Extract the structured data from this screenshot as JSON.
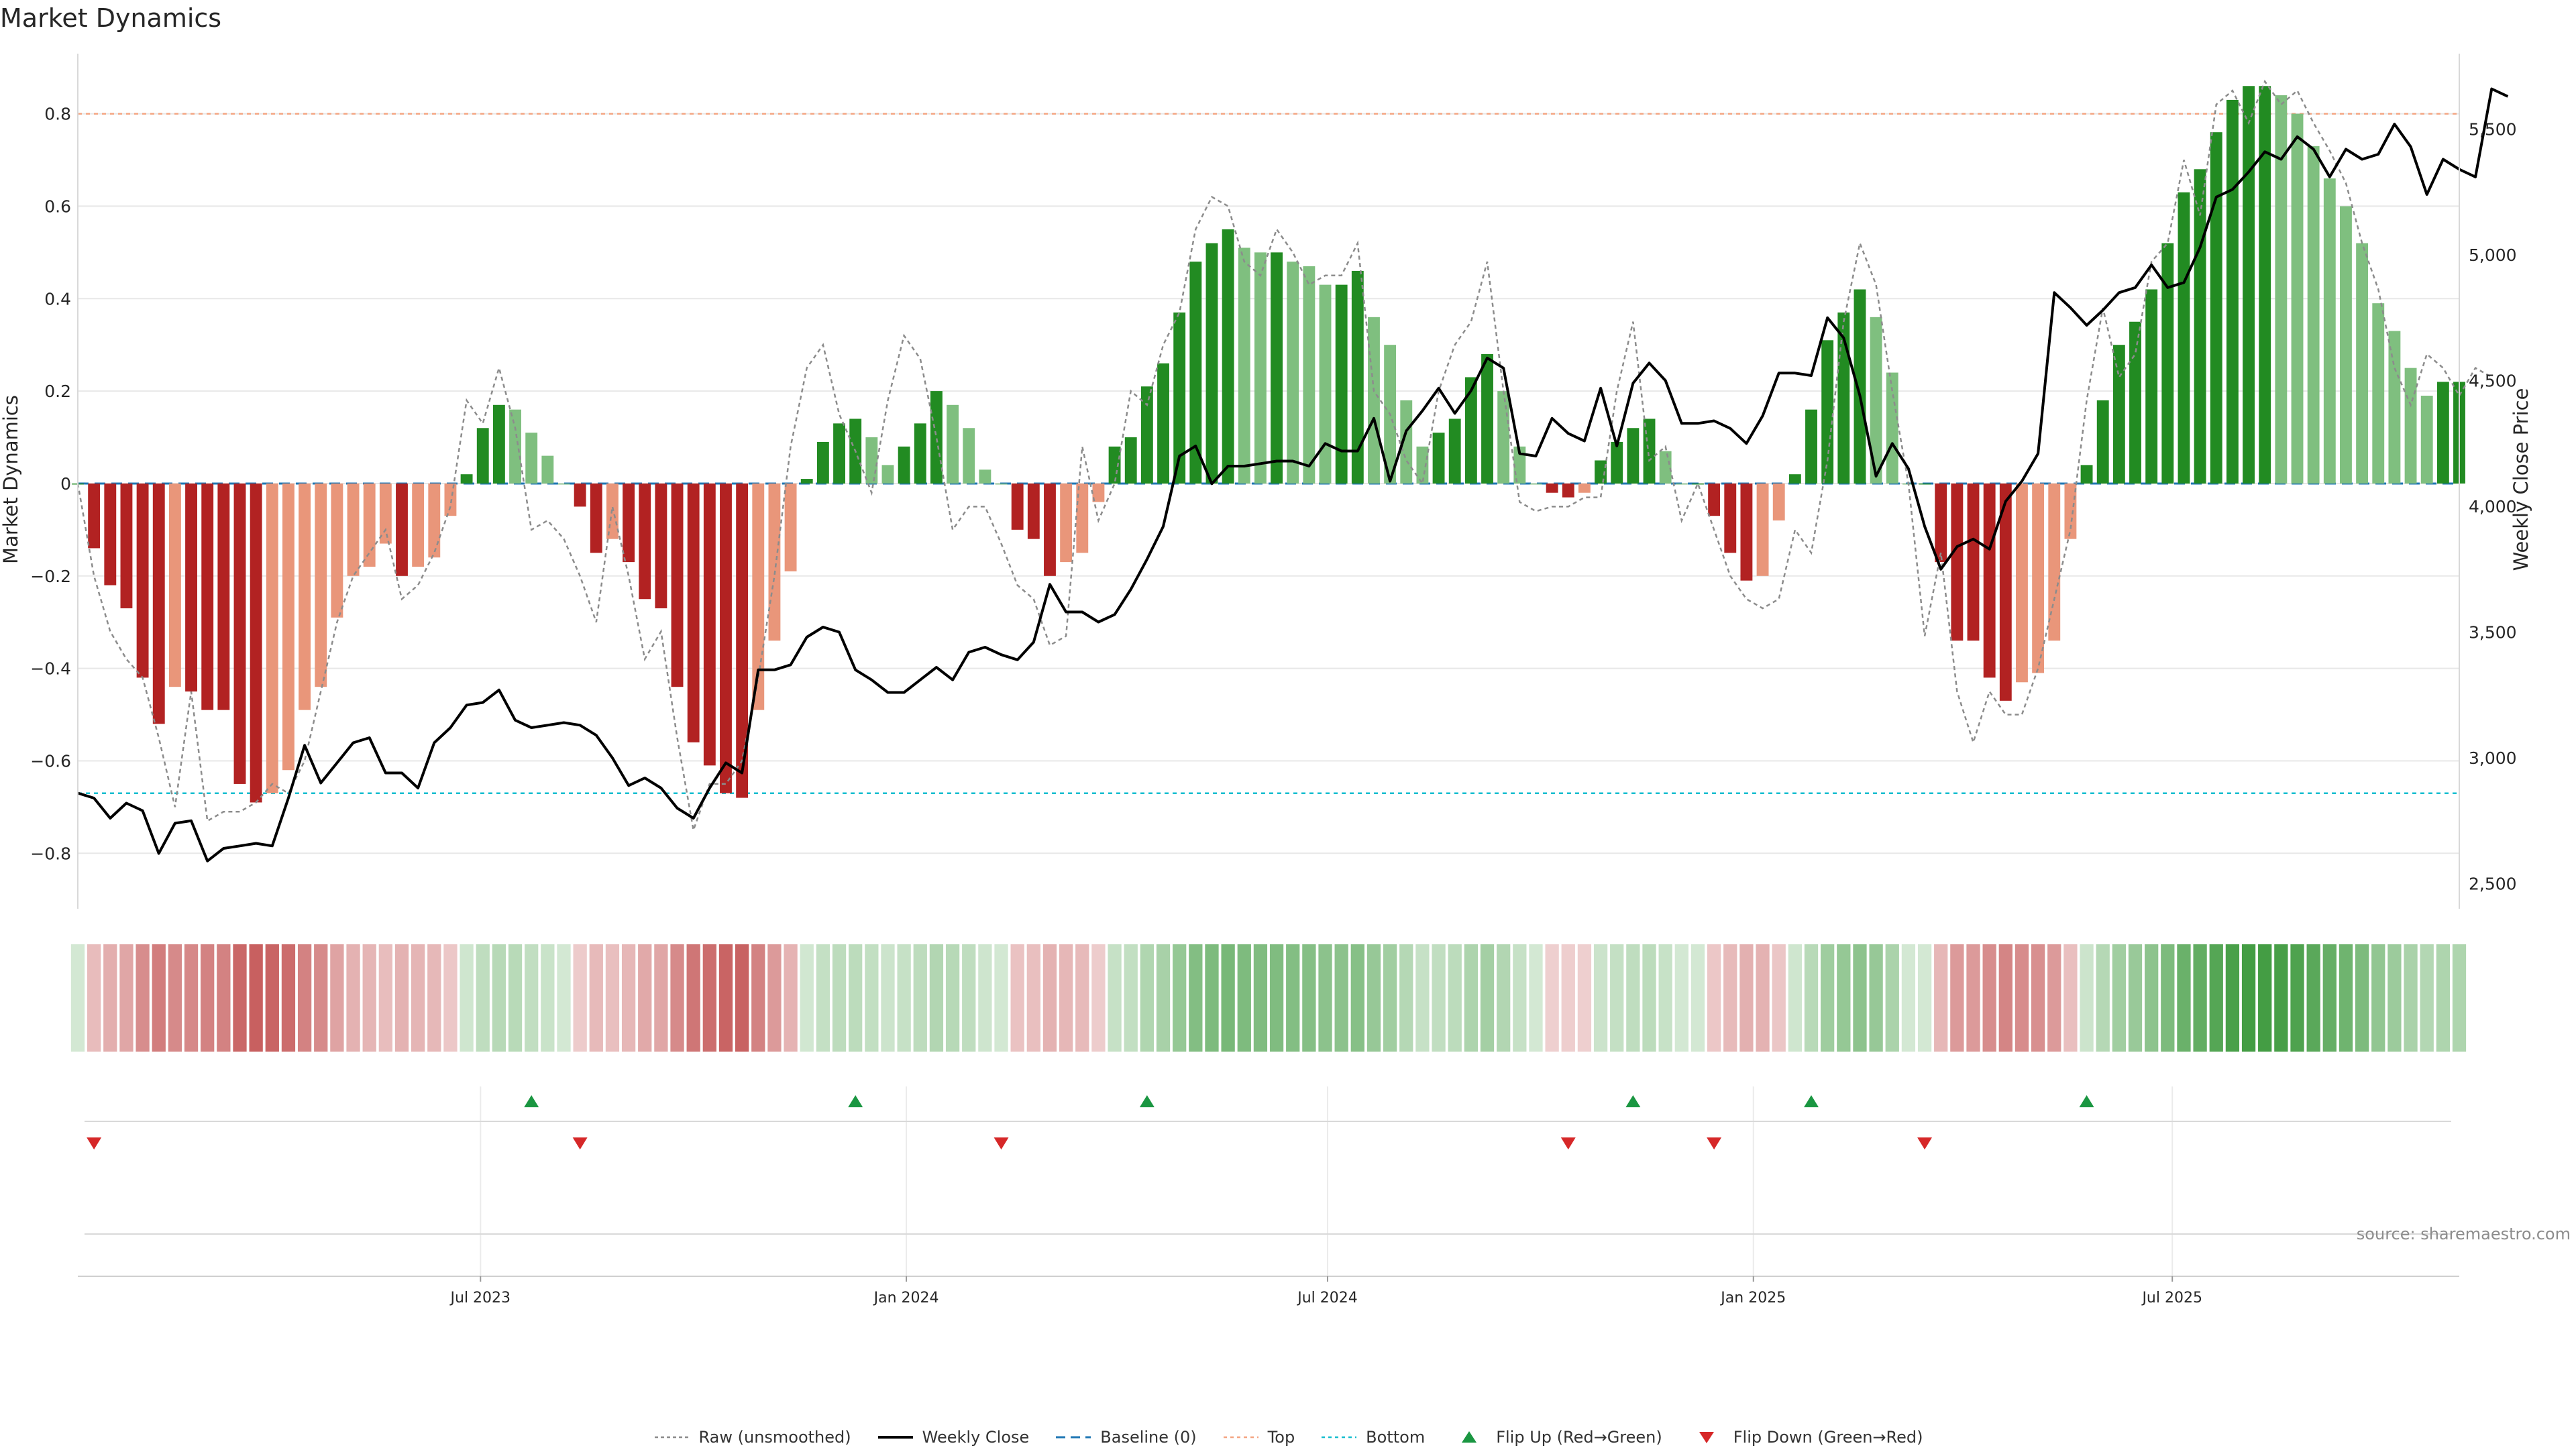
{
  "title": "Market Dynamics",
  "source": "source: sharemaestro.com",
  "colors": {
    "green_dark": "#228b22",
    "green_light": "#7fbf7f",
    "red_dark": "#b22222",
    "red_light": "#e9967a",
    "price": "#000000",
    "raw": "#8c8c8c",
    "baseline": "#1f77b4",
    "top": "#f4a582",
    "bottom": "#17becf",
    "flip_up": "#1a9641",
    "flip_down": "#d62728"
  },
  "chart_data": {
    "type": "bar",
    "start_date": "2023-01-08",
    "frequency": "weekly",
    "ylabel": "Market Dynamics",
    "y2label": "Weekly Close Price",
    "ylim": [
      -0.92,
      0.93
    ],
    "y2lim": [
      2400,
      5800
    ],
    "yticks": [
      -0.8,
      -0.6,
      -0.4,
      -0.2,
      0,
      0.2,
      0.4,
      0.6,
      0.8
    ],
    "y2ticks": [
      2500,
      3000,
      3500,
      4000,
      4500,
      5000,
      5500
    ],
    "y2ticklabels": [
      "2,500",
      "3,000",
      "3,500",
      "4,000",
      "4,500",
      "5,000",
      "5,500"
    ],
    "xticks": [
      {
        "label": "Jul 2023",
        "date": "2023-07-01"
      },
      {
        "label": "Jan 2024",
        "date": "2024-01-01"
      },
      {
        "label": "Jul 2024",
        "date": "2024-07-01"
      },
      {
        "label": "Jan 2025",
        "date": "2025-01-01"
      },
      {
        "label": "Jul 2025",
        "date": "2025-07-01"
      }
    ],
    "top_level": 0.8,
    "bottom_level": -0.67,
    "baseline": 0,
    "smoothed": [
      0.0,
      -0.14,
      -0.22,
      -0.27,
      -0.42,
      -0.52,
      -0.44,
      -0.45,
      -0.49,
      -0.49,
      -0.65,
      -0.69,
      -0.67,
      -0.62,
      -0.49,
      -0.44,
      -0.29,
      -0.2,
      -0.18,
      -0.13,
      -0.2,
      -0.18,
      -0.16,
      -0.07,
      0.02,
      0.12,
      0.17,
      0.16,
      0.11,
      0.06,
      0.0,
      -0.05,
      -0.15,
      -0.12,
      -0.17,
      -0.25,
      -0.27,
      -0.44,
      -0.56,
      -0.61,
      -0.67,
      -0.68,
      -0.49,
      -0.34,
      -0.19,
      0.01,
      0.09,
      0.13,
      0.14,
      0.1,
      0.04,
      0.08,
      0.13,
      0.2,
      0.17,
      0.12,
      0.03,
      0.0,
      -0.1,
      -0.12,
      -0.2,
      -0.17,
      -0.15,
      -0.04,
      0.08,
      0.1,
      0.21,
      0.26,
      0.37,
      0.48,
      0.52,
      0.55,
      0.51,
      0.5,
      0.5,
      0.48,
      0.47,
      0.43,
      0.43,
      0.46,
      0.36,
      0.3,
      0.18,
      0.08,
      0.11,
      0.14,
      0.23,
      0.28,
      0.2,
      0.08,
      0.0,
      -0.02,
      -0.03,
      -0.02,
      0.05,
      0.09,
      0.12,
      0.14,
      0.07,
      0.0,
      0.0,
      -0.07,
      -0.15,
      -0.21,
      -0.2,
      -0.08,
      0.02,
      0.16,
      0.31,
      0.37,
      0.42,
      0.36,
      0.24,
      0.0,
      0.0,
      -0.17,
      -0.34,
      -0.34,
      -0.42,
      -0.47,
      -0.43,
      -0.41,
      -0.34,
      -0.12,
      0.04,
      0.18,
      0.3,
      0.35,
      0.42,
      0.52,
      0.63,
      0.68,
      0.76,
      0.83,
      0.86,
      0.86,
      0.84,
      0.8,
      0.73,
      0.66,
      0.6,
      0.52,
      0.39,
      0.33,
      0.25,
      0.19,
      0.22,
      0.22
    ],
    "raw": [
      0.0,
      -0.2,
      -0.32,
      -0.38,
      -0.42,
      -0.55,
      -0.7,
      -0.45,
      -0.73,
      -0.71,
      -0.71,
      -0.69,
      -0.65,
      -0.67,
      -0.6,
      -0.45,
      -0.3,
      -0.2,
      -0.15,
      -0.1,
      -0.25,
      -0.22,
      -0.15,
      -0.05,
      0.18,
      0.13,
      0.25,
      0.12,
      -0.1,
      -0.08,
      -0.12,
      -0.2,
      -0.3,
      -0.05,
      -0.2,
      -0.38,
      -0.32,
      -0.55,
      -0.75,
      -0.65,
      -0.65,
      -0.6,
      -0.42,
      -0.2,
      0.08,
      0.25,
      0.3,
      0.15,
      0.07,
      -0.02,
      0.18,
      0.32,
      0.27,
      0.1,
      -0.1,
      -0.05,
      -0.05,
      -0.13,
      -0.22,
      -0.25,
      -0.35,
      -0.33,
      0.08,
      -0.08,
      0.0,
      0.2,
      0.17,
      0.3,
      0.37,
      0.55,
      0.62,
      0.6,
      0.48,
      0.45,
      0.55,
      0.5,
      0.43,
      0.45,
      0.45,
      0.52,
      0.2,
      0.15,
      0.05,
      0.0,
      0.2,
      0.3,
      0.35,
      0.48,
      0.2,
      -0.04,
      -0.06,
      -0.05,
      -0.05,
      -0.03,
      -0.03,
      0.2,
      0.35,
      0.05,
      0.08,
      -0.08,
      0.0,
      -0.1,
      -0.2,
      -0.25,
      -0.27,
      -0.25,
      -0.1,
      -0.15,
      0.05,
      0.35,
      0.52,
      0.43,
      0.2,
      0.0,
      -0.33,
      -0.15,
      -0.45,
      -0.56,
      -0.45,
      -0.5,
      -0.5,
      -0.4,
      -0.25,
      -0.1,
      0.18,
      0.38,
      0.23,
      0.28,
      0.48,
      0.52,
      0.7,
      0.58,
      0.82,
      0.85,
      0.78,
      0.87,
      0.82,
      0.85,
      0.78,
      0.72,
      0.65,
      0.52,
      0.42,
      0.25,
      0.17,
      0.28,
      0.25,
      0.19,
      0.25,
      0.23
    ],
    "price": [
      2860,
      2840,
      2760,
      2820,
      2790,
      2620,
      2740,
      2750,
      2590,
      2640,
      2650,
      2660,
      2650,
      2840,
      3050,
      2900,
      2980,
      3060,
      3080,
      2940,
      2940,
      2880,
      3060,
      3120,
      3210,
      3220,
      3270,
      3150,
      3120,
      3130,
      3140,
      3130,
      3090,
      3000,
      2890,
      2920,
      2880,
      2800,
      2760,
      2880,
      2980,
      2940,
      3350,
      3350,
      3370,
      3480,
      3520,
      3500,
      3350,
      3310,
      3260,
      3260,
      3310,
      3360,
      3310,
      3420,
      3440,
      3410,
      3390,
      3460,
      3690,
      3580,
      3580,
      3540,
      3570,
      3670,
      3790,
      3920,
      4200,
      4240,
      4090,
      4160,
      4160,
      4170,
      4180,
      4180,
      4160,
      4250,
      4220,
      4220,
      4350,
      4100,
      4300,
      4380,
      4470,
      4370,
      4460,
      4590,
      4550,
      4210,
      4200,
      4350,
      4290,
      4260,
      4470,
      4240,
      4490,
      4570,
      4500,
      4330,
      4330,
      4340,
      4310,
      4250,
      4360,
      4530,
      4530,
      4520,
      4750,
      4670,
      4440,
      4120,
      4250,
      4150,
      3920,
      3750,
      3840,
      3870,
      3830,
      4020,
      4100,
      4210,
      4850,
      4790,
      4720,
      4780,
      4850,
      4870,
      4960,
      4870,
      4890,
      5030,
      5230,
      5260,
      5330,
      5410,
      5380,
      5470,
      5420,
      5310,
      5420,
      5380,
      5400,
      5520,
      5430,
      5240,
      5380,
      5340,
      5310,
      5660,
      5630
    ]
  },
  "heat_strip": {
    "rgb_green": [
      34,
      139,
      34
    ],
    "rgb_red": [
      178,
      34,
      34
    ]
  },
  "flips": {
    "up_dates": [
      "2023-07-23",
      "2023-12-10",
      "2024-04-14",
      "2024-11-10",
      "2025-01-26",
      "2025-05-25"
    ],
    "down_dates": [
      "2023-01-15",
      "2023-08-13",
      "2024-02-11",
      "2024-10-13",
      "2024-12-15",
      "2025-03-16"
    ]
  },
  "legend": [
    {
      "label": "Raw (unsmoothed)",
      "kind": "raw"
    },
    {
      "label": "Weekly Close",
      "kind": "price"
    },
    {
      "label": "Baseline (0)",
      "kind": "baseline"
    },
    {
      "label": "Top",
      "kind": "top"
    },
    {
      "label": "Bottom",
      "kind": "bottom"
    },
    {
      "label": "Flip Up (Red→Green)",
      "kind": "flip_up"
    },
    {
      "label": "Flip Down (Green→Red)",
      "kind": "flip_down"
    }
  ]
}
